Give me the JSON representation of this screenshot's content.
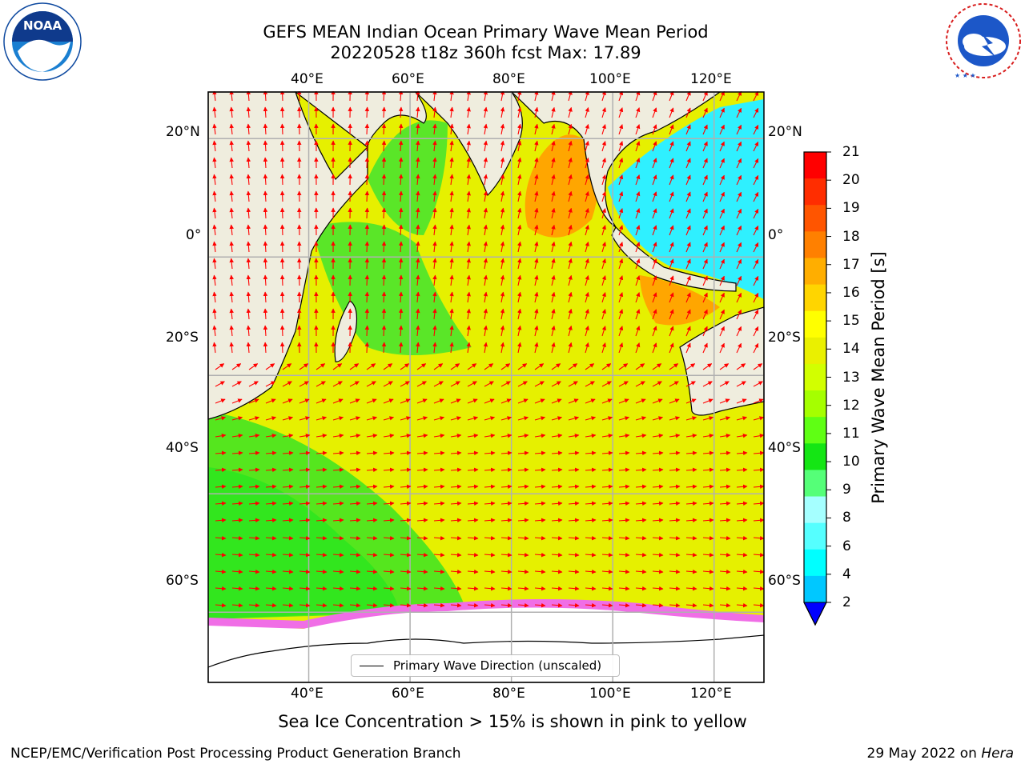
{
  "title": {
    "line1": "GEFS MEAN Indian Ocean Primary Wave Mean Period",
    "line2": "20220528 t18z 360h fcst   Max: 17.89"
  },
  "logos": {
    "left": {
      "name": "NOAA",
      "text": "NOAA",
      "ring_text": "NATIONAL OCEANIC AND ATMOSPHERIC ADMINISTRATION · U.S. DEPARTMENT OF COMMERCE",
      "color": "#0f4aa0"
    },
    "right": {
      "name": "National Weather Service",
      "ring_text": "NATIONAL WEATHER SERVICE",
      "color": "#d81e1e"
    }
  },
  "map": {
    "projection": "cylindrical",
    "lon_range": [
      20,
      130
    ],
    "lat_range": [
      -72,
      28
    ],
    "grid": true,
    "ocean_fill_note": "wave period shaded",
    "land_color": "#efedde",
    "ice_color": "#ffffff",
    "lon_ticks": [
      "40°E",
      "60°E",
      "80°E",
      "100°E",
      "120°E"
    ],
    "lon_tick_values": [
      40,
      60,
      80,
      100,
      120
    ],
    "lat_ticks": [
      "20°N",
      "0°",
      "20°S",
      "40°S",
      "60°S"
    ],
    "lat_tick_values": [
      20,
      0,
      -20,
      -40,
      -60
    ]
  },
  "legend": {
    "label": "Primary Wave Direction (unscaled)"
  },
  "colorbar": {
    "label": "Primary Wave Mean Period [s]",
    "ticks": [
      "21",
      "20",
      "19",
      "18",
      "17",
      "16",
      "15",
      "14",
      "13",
      "12",
      "11",
      "10",
      "9",
      "8",
      "6",
      "4",
      "2"
    ],
    "colors": [
      "#ff0000",
      "#ff2d00",
      "#ff5500",
      "#ff8000",
      "#ffae00",
      "#ffd500",
      "#ffff00",
      "#eaf000",
      "#d2ff00",
      "#a5ff00",
      "#5fff14",
      "#14e614",
      "#55ff78",
      "#a5ffff",
      "#55ffff",
      "#00ffff",
      "#00c8ff",
      "#0078ff"
    ],
    "extend_color": "#0000ff"
  },
  "arrows": {
    "color": "#ff0000"
  },
  "caption": "Sea Ice Concentration > 15% is shown in pink to yellow",
  "footer": {
    "left": "NCEP/EMC/Verification Post Processing Product Generation Branch",
    "right_prefix": "29 May 2022 on ",
    "right_host": "Hera"
  }
}
